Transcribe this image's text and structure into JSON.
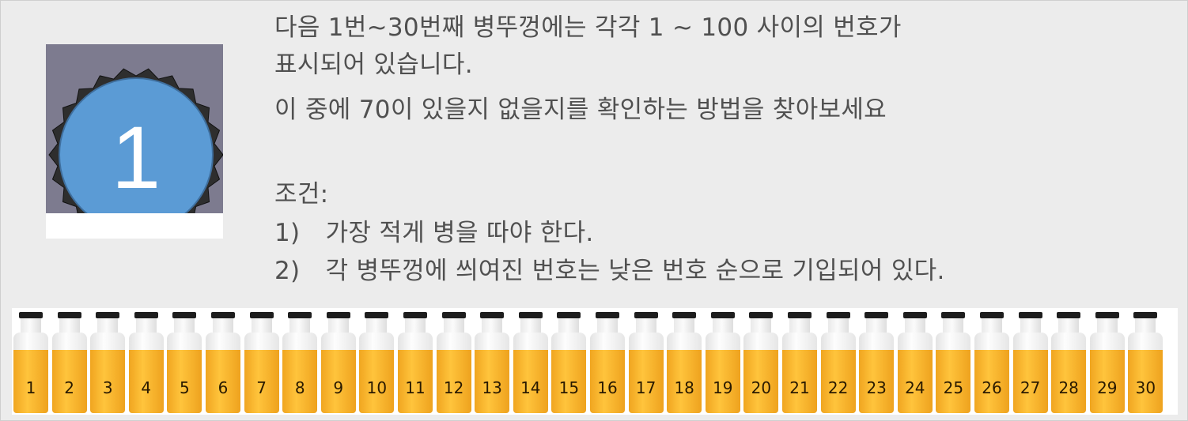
{
  "cap": {
    "number": "1"
  },
  "problem": {
    "line1": "다음 1번~30번째 병뚜껑에는 각각 1 ~ 100 사이의 번호가",
    "line2": "표시되어 있습니다.",
    "line3": "이 중에 70이 있을지 없을지를 확인하는 방법을 찾아보세요"
  },
  "conditions": {
    "heading": "조건:",
    "items": [
      {
        "marker": "1)",
        "text": "가장 적게 병을 따야 한다."
      },
      {
        "marker": "2)",
        "text": "각 병뚜껑에 씌여진 번호는 낮은 번호 순으로 기입되어 있다."
      }
    ]
  },
  "bottles": [
    "1",
    "2",
    "3",
    "4",
    "5",
    "6",
    "7",
    "8",
    "9",
    "10",
    "11",
    "12",
    "13",
    "14",
    "15",
    "16",
    "17",
    "18",
    "19",
    "20",
    "21",
    "22",
    "23",
    "24",
    "25",
    "26",
    "27",
    "28",
    "29",
    "30"
  ],
  "colors": {
    "cap_blue": "#5b9bd5",
    "juice": "#ffc43c",
    "background": "#ececec"
  }
}
